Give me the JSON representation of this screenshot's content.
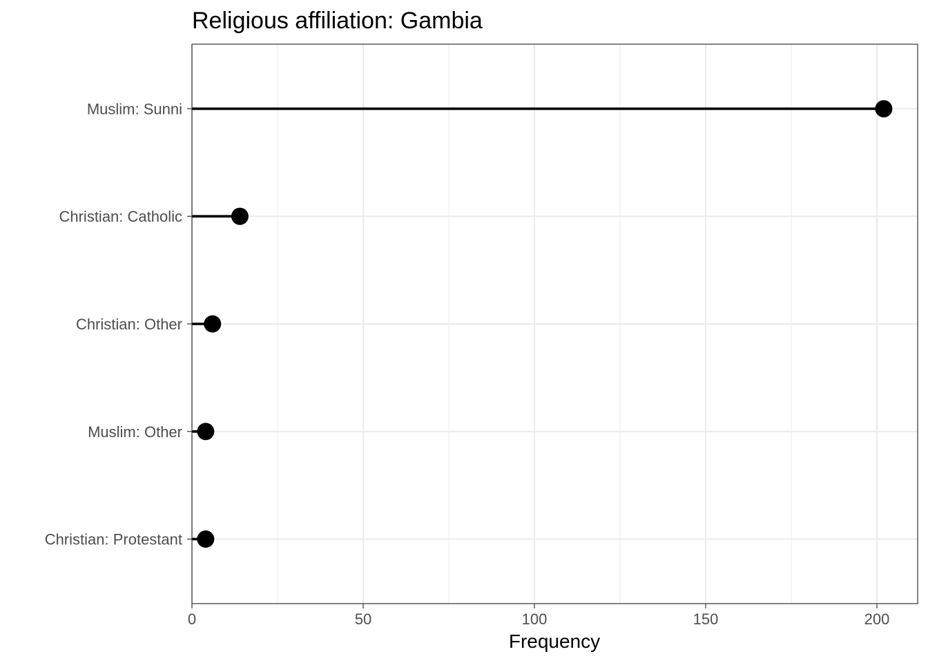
{
  "chart_data": {
    "type": "lollipop",
    "title": "Religious affiliation: Gambia",
    "xlabel": "Frequency",
    "ylabel": "",
    "xlim": [
      0,
      212
    ],
    "x_ticks": [
      0,
      50,
      100,
      150,
      200
    ],
    "grid": true,
    "categories": [
      "Muslim: Sunni",
      "Christian: Catholic",
      "Christian: Other",
      "Muslim: Other",
      "Christian: Protestant"
    ],
    "values": [
      202,
      14,
      6,
      4,
      4
    ],
    "colors": {
      "mark": "#000000",
      "grid": "#ebebeb",
      "panel_border": "#333333",
      "tick_text": "#4d4d4d"
    }
  }
}
